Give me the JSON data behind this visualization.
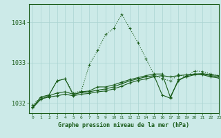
{
  "title": "Graphe pression niveau de la mer (hPa)",
  "background_color": "#cceae8",
  "grid_color": "#aad4d2",
  "line_color": "#1a5c1a",
  "xlim": [
    -0.5,
    23
  ],
  "ylim": [
    1031.75,
    1034.45
  ],
  "yticks": [
    1032,
    1033,
    1034
  ],
  "xtick_labels": [
    "0",
    "1",
    "2",
    "3",
    "4",
    "5",
    "6",
    "7",
    "8",
    "9",
    "10",
    "11",
    "12",
    "13",
    "14",
    "15",
    "16",
    "17",
    "18",
    "19",
    "20",
    "21",
    "22",
    "23"
  ],
  "line_dotted_x": [
    0,
    1,
    2,
    3,
    4,
    5,
    6,
    7,
    8,
    9,
    10,
    11,
    12,
    13,
    14,
    15,
    16,
    17,
    18,
    19,
    20,
    21,
    22,
    23
  ],
  "line_dotted_y": [
    1031.95,
    1032.15,
    1032.2,
    1032.55,
    1032.6,
    1032.25,
    1032.3,
    1032.95,
    1033.3,
    1033.7,
    1033.85,
    1034.2,
    1033.85,
    1033.5,
    1033.1,
    1032.7,
    1032.6,
    1032.55,
    1032.7,
    1032.65,
    1032.8,
    1032.78,
    1032.72,
    1032.68
  ],
  "line_solid1_x": [
    0,
    1,
    2,
    3,
    4,
    5,
    6,
    7,
    8,
    9,
    10,
    11,
    12,
    13,
    14,
    15,
    16,
    17,
    18,
    19,
    20,
    21,
    22,
    23
  ],
  "line_solid1_y": [
    1031.9,
    1032.15,
    1032.2,
    1032.55,
    1032.6,
    1032.2,
    1032.28,
    1032.3,
    1032.4,
    1032.4,
    1032.45,
    1032.52,
    1032.58,
    1032.63,
    1032.68,
    1032.72,
    1032.72,
    1032.15,
    1032.55,
    1032.68,
    1032.72,
    1032.73,
    1032.7,
    1032.68
  ],
  "line_solid2_x": [
    0,
    1,
    2,
    3,
    4,
    5,
    6,
    7,
    8,
    9,
    10,
    11,
    12,
    13,
    14,
    15,
    16,
    17,
    18,
    19,
    20,
    21,
    22,
    23
  ],
  "line_solid2_y": [
    1031.9,
    1032.1,
    1032.18,
    1032.25,
    1032.28,
    1032.22,
    1032.26,
    1032.28,
    1032.32,
    1032.35,
    1032.4,
    1032.48,
    1032.55,
    1032.6,
    1032.65,
    1032.68,
    1032.2,
    1032.12,
    1032.58,
    1032.65,
    1032.7,
    1032.72,
    1032.68,
    1032.65
  ],
  "line_solid3_x": [
    0,
    1,
    2,
    3,
    4,
    5,
    6,
    7,
    8,
    9,
    10,
    11,
    12,
    13,
    14,
    15,
    16,
    17,
    18,
    19,
    20,
    21,
    22,
    23
  ],
  "line_solid3_y": [
    1031.88,
    1032.1,
    1032.15,
    1032.18,
    1032.22,
    1032.18,
    1032.22,
    1032.24,
    1032.28,
    1032.3,
    1032.35,
    1032.42,
    1032.5,
    1032.56,
    1032.6,
    1032.65,
    1032.68,
    1032.65,
    1032.68,
    1032.7,
    1032.72,
    1032.7,
    1032.65,
    1032.62
  ]
}
